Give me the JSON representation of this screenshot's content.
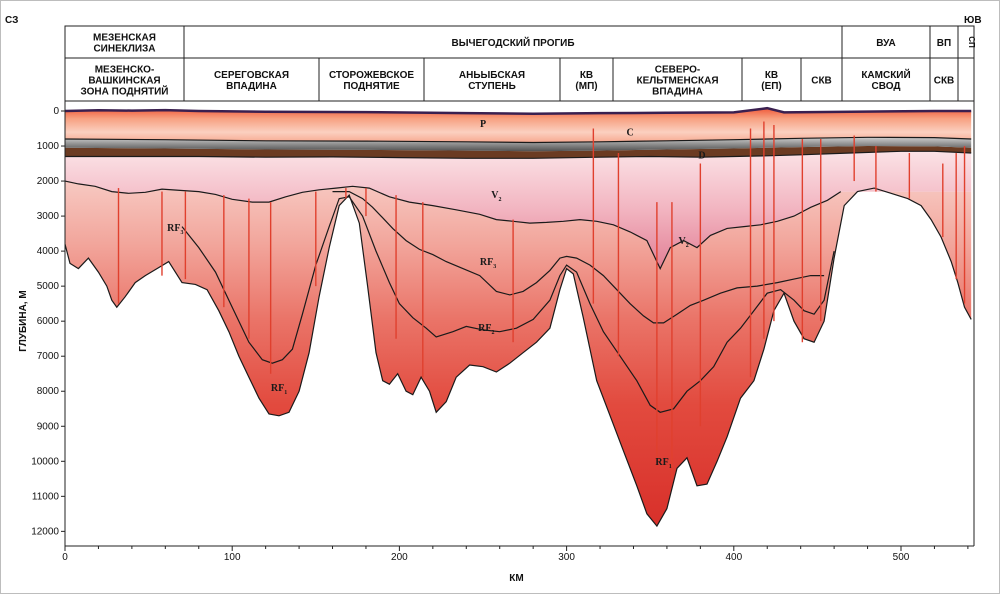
{
  "direction": {
    "left": "СЗ",
    "right": "ЮВ"
  },
  "header": {
    "top_row": [
      {
        "label": "МЕЗЕНСКАЯ\nСИНЕКЛИЗА"
      },
      {
        "label": "ВЫЧЕГОДСКИЙ ПРОГИБ"
      },
      {
        "label": "ВУА"
      },
      {
        "label": "ВП"
      },
      {
        "label": "СП"
      }
    ],
    "bottom_row": [
      {
        "label": "МЕЗЕНСКО-\nВАШКИНСКАЯ\nЗОНА ПОДНЯТИЙ"
      },
      {
        "label": "СЕРЕГОВСКАЯ\nВПАДИНА"
      },
      {
        "label": "СТОРОЖЕВСКОЕ\nПОДНЯТИЕ"
      },
      {
        "label": "АНЬЫБСКАЯ\nСТУПЕНЬ"
      },
      {
        "label": "КВ\n(МП)"
      },
      {
        "label": "СЕВЕРО-\nКЕЛЬТМЕНСКАЯ\nВПАДИНА"
      },
      {
        "label": "КВ\n(ЕП)"
      },
      {
        "label": "СКВ"
      },
      {
        "label": "КАМСКИЙ\nСВОД"
      },
      {
        "label": "СКВ"
      }
    ]
  },
  "axes": {
    "ylabel": "ГЛУБИНА, М",
    "xlabel": "КМ",
    "yticks": [
      "0",
      "1000",
      "2000",
      "3000",
      "4000",
      "5000",
      "6000",
      "7000",
      "8000",
      "9000",
      "10000",
      "11000",
      "12000"
    ],
    "xticks": [
      "0",
      "100",
      "200",
      "300",
      "400",
      "500"
    ]
  },
  "layers": [
    {
      "label": "P",
      "sub": "",
      "km": 250,
      "depth_m": 450
    },
    {
      "label": "C",
      "sub": "",
      "km": 338,
      "depth_m": 700
    },
    {
      "label": "D",
      "sub": "",
      "km": 381,
      "depth_m": 1350
    },
    {
      "label": "V",
      "sub": "2",
      "km": 258,
      "depth_m": 2480
    },
    {
      "label": "V",
      "sub": "2",
      "km": 370,
      "depth_m": 3800
    },
    {
      "label": "RF",
      "sub": "3",
      "km": 66,
      "depth_m": 3420
    },
    {
      "label": "RF",
      "sub": "3",
      "km": 253,
      "depth_m": 4400
    },
    {
      "label": "RF",
      "sub": "2",
      "km": 252,
      "depth_m": 6280
    },
    {
      "label": "RF",
      "sub": "1",
      "km": 128,
      "depth_m": 8000
    },
    {
      "label": "RF",
      "sub": "1",
      "km": 358,
      "depth_m": 10100
    }
  ]
}
